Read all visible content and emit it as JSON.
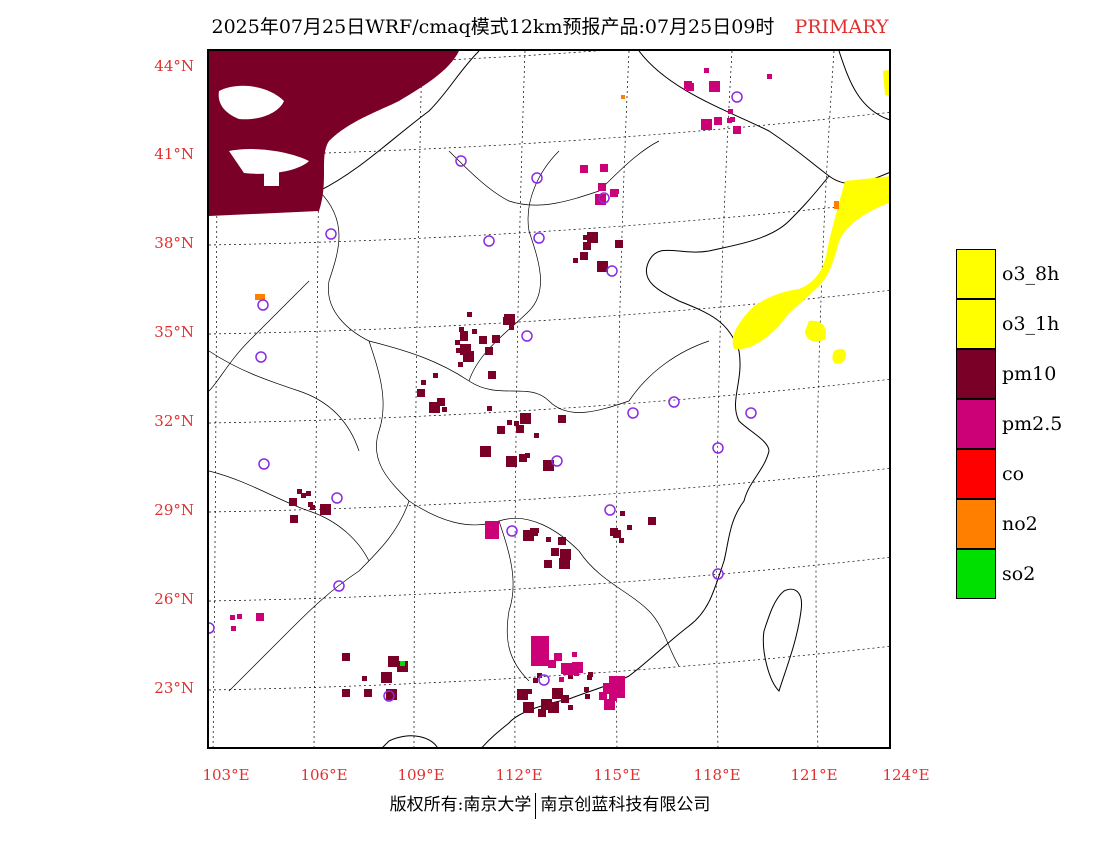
{
  "title": {
    "main": "2025年07月25日WRF/cmaq模式12km预报产品:07月25日09时",
    "tag": "PRIMARY"
  },
  "axes": {
    "lat_labels": [
      "44°N",
      "41°N",
      "38°N",
      "35°N",
      "32°N",
      "29°N",
      "26°N",
      "23°N"
    ],
    "lon_labels": [
      "103°E",
      "106°E",
      "109°E",
      "112°E",
      "115°E",
      "118°E",
      "121°E",
      "124°E"
    ]
  },
  "legend": {
    "items": [
      {
        "label": "o3_8h",
        "color": "#ffff00"
      },
      {
        "label": "o3_1h",
        "color": "#ffff00"
      },
      {
        "label": "pm10",
        "color": "#7b0028"
      },
      {
        "label": "pm2.5",
        "color": "#cc0077"
      },
      {
        "label": "co",
        "color": "#ff0000"
      },
      {
        "label": "no2",
        "color": "#ff8000"
      },
      {
        "label": "so2",
        "color": "#00e000"
      }
    ]
  },
  "footer": {
    "left": "版权所有:南京大学",
    "right": "南京创蓝科技有限公司"
  },
  "colors": {
    "o3": "#ffff00",
    "pm10": "#7b0028",
    "pm25": "#cc0077",
    "no2": "#ff8000",
    "so2": "#00e000",
    "station": "#8a2be2",
    "accent": "#e03030"
  }
}
